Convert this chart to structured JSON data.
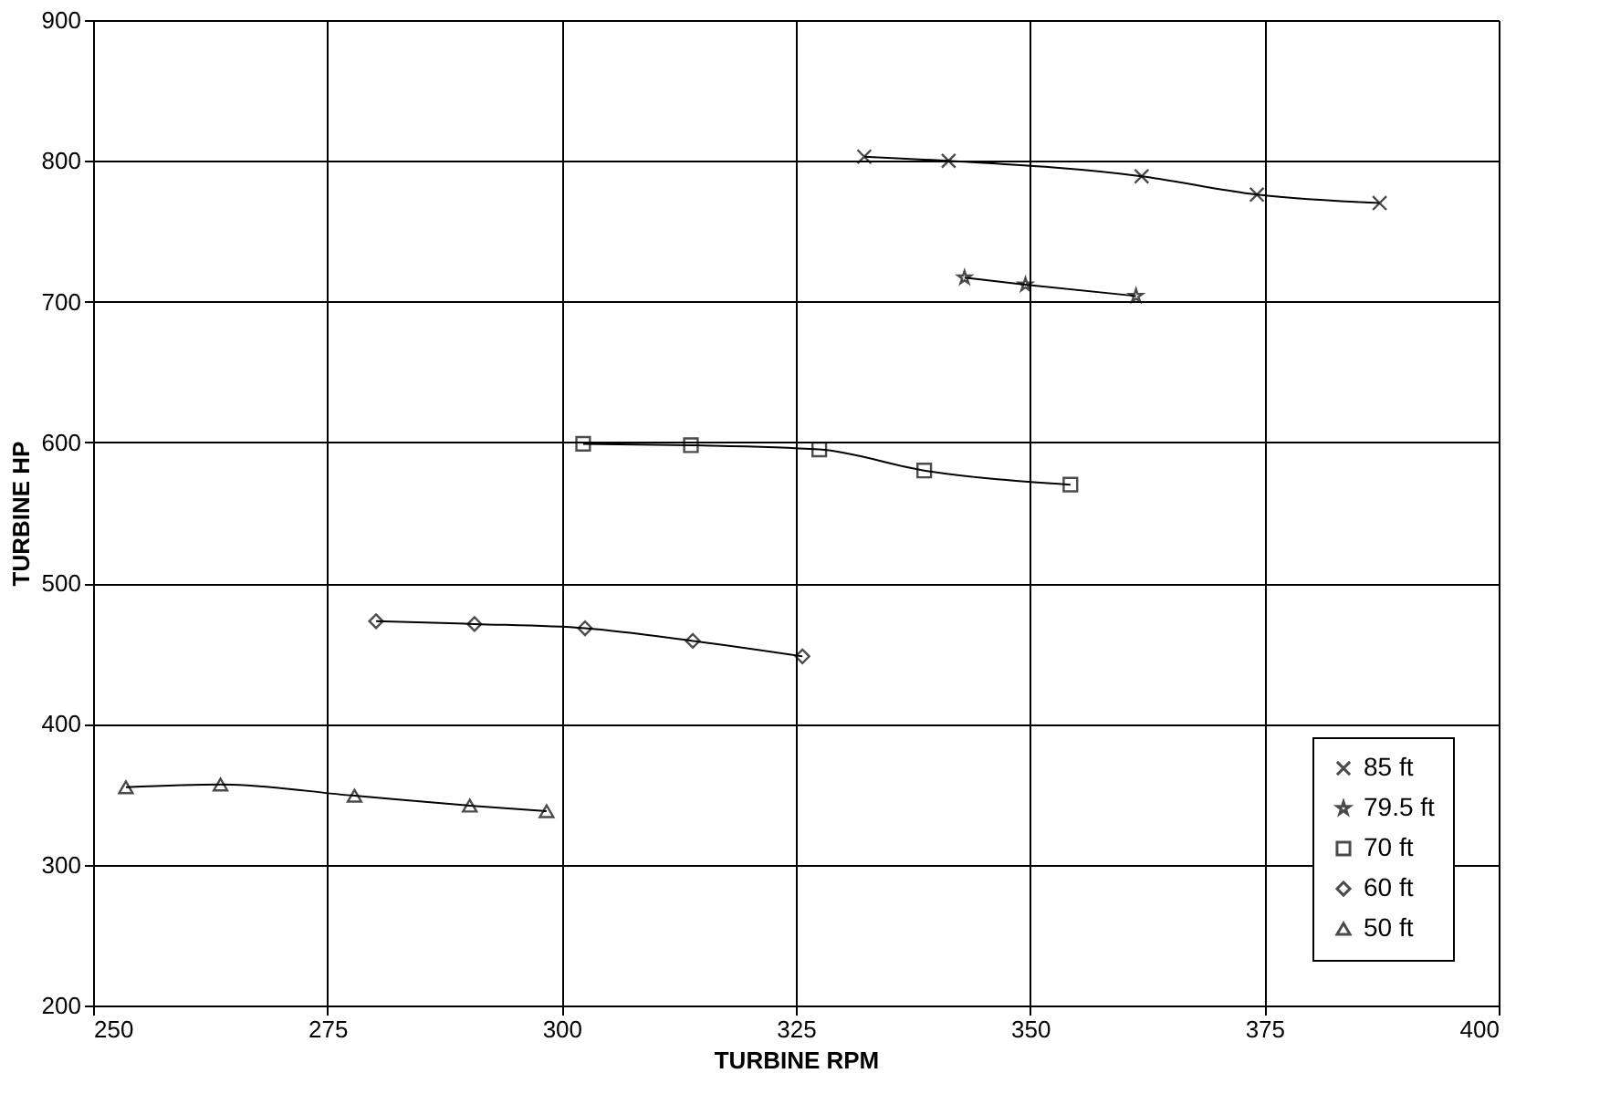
{
  "chart_data": {
    "type": "line",
    "xlabel": "TURBINE RPM",
    "ylabel": "TURBINE HP",
    "xlim": [
      250,
      400
    ],
    "xticks": [
      250,
      275,
      300,
      325,
      350,
      375,
      400
    ],
    "ylim": [
      200,
      900
    ],
    "yticks": [
      200,
      300,
      400,
      500,
      600,
      700,
      800,
      900
    ],
    "grid": true,
    "legend": "bottom right",
    "line_style": "solid",
    "series": [
      {
        "name": "85 ft",
        "color": "#000000",
        "marker": "cross",
        "x": [
          332.3,
          341.3,
          361.9,
          374.2,
          387.3
        ],
        "values": [
          803,
          800,
          789,
          776,
          770
        ]
      },
      {
        "name": "79.5 ft",
        "color": "#000000",
        "marker": "star",
        "x": [
          343,
          349.5,
          361.3
        ],
        "values": [
          717,
          712,
          704
        ]
      },
      {
        "name": "70 ft",
        "color": "#000000",
        "marker": "square",
        "x": [
          302.3,
          313.8,
          327.5,
          338.7,
          354.3
        ],
        "values": [
          599,
          598,
          595,
          580,
          570
        ]
      },
      {
        "name": "60 ft",
        "color": "#000000",
        "marker": "diamond",
        "x": [
          280.2,
          290.7,
          302.5,
          314,
          325.7
        ],
        "values": [
          473,
          471,
          468,
          459,
          448
        ]
      },
      {
        "name": "50 ft",
        "color": "#000000",
        "marker": "triangle",
        "x": [
          253.5,
          263.6,
          277.9,
          290.2,
          298.4
        ],
        "values": [
          355,
          357,
          349,
          342,
          338
        ]
      }
    ]
  }
}
